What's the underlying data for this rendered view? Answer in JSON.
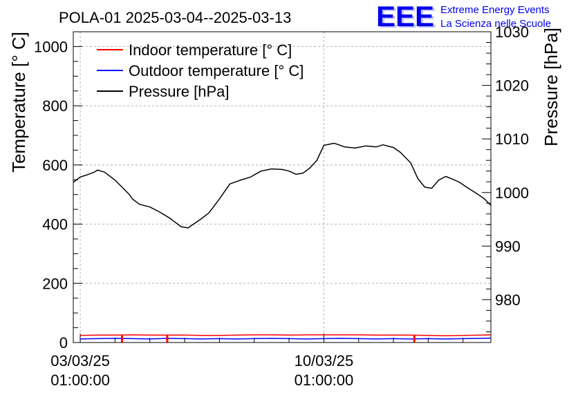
{
  "chart_data": {
    "type": "line",
    "title": "POLA-01 2025-03-04--2025-03-13",
    "ylabel_left": "Temperature [° C]",
    "ylabel_right": "Pressure [hPa]",
    "xlabel": "",
    "x_domain_days": [
      -0.2,
      11.8
    ],
    "x_ticks": [
      {
        "day": 0,
        "date": "03/03/25",
        "time": "01:00:00"
      },
      {
        "day": 7,
        "date": "10/03/25",
        "time": "01:00:00"
      }
    ],
    "ylim_left": [
      0,
      1050
    ],
    "yticks_left": [
      "0",
      "200",
      "400",
      "600",
      "800",
      "1000"
    ],
    "ylim_right": [
      972,
      1030
    ],
    "yticks_right": [
      "980",
      "990",
      "1000",
      "1010",
      "1020",
      "1030"
    ],
    "grid": true,
    "legend_position": "top-left",
    "series": [
      {
        "name": "Indoor temperature [° C]",
        "axis": "left",
        "color": "#ff0000",
        "x": [
          0.0,
          0.5,
          1.0,
          1.5,
          2.0,
          2.5,
          3.0,
          3.5,
          4.0,
          4.5,
          5.0,
          5.5,
          6.0,
          6.5,
          7.0,
          7.5,
          8.0,
          8.5,
          9.0,
          9.5,
          10.0,
          10.5,
          11.0,
          11.5,
          11.8
        ],
        "values": [
          24,
          25,
          25,
          26,
          25,
          25,
          25,
          24,
          24,
          25,
          26,
          26,
          25,
          26,
          26,
          26,
          26,
          25,
          25,
          25,
          24,
          23,
          24,
          25,
          26
        ]
      },
      {
        "name": "Outdoor temperature [° C]",
        "axis": "left",
        "color": "#0000ff",
        "x": [
          0.0,
          0.5,
          1.0,
          1.5,
          2.0,
          2.5,
          3.0,
          3.5,
          4.0,
          4.5,
          5.0,
          5.5,
          6.0,
          6.5,
          7.0,
          7.5,
          8.0,
          8.5,
          9.0,
          9.5,
          10.0,
          10.5,
          11.0,
          11.5,
          11.8
        ],
        "values": [
          12,
          13,
          14,
          13,
          12,
          14,
          13,
          12,
          13,
          12,
          13,
          14,
          13,
          12,
          13,
          14,
          13,
          12,
          13,
          12,
          13,
          12,
          13,
          14,
          15
        ]
      },
      {
        "name": "Pressure [hPa]",
        "axis": "right",
        "color": "#000000",
        "x": [
          -0.2,
          0.0,
          0.2,
          0.4,
          0.5,
          0.7,
          1.0,
          1.2,
          1.4,
          1.5,
          1.7,
          2.0,
          2.3,
          2.6,
          2.9,
          3.1,
          3.3,
          3.5,
          3.7,
          4.0,
          4.3,
          4.6,
          4.9,
          5.0,
          5.2,
          5.5,
          5.8,
          6.0,
          6.2,
          6.4,
          6.6,
          6.8,
          7.0,
          7.3,
          7.6,
          7.9,
          8.2,
          8.5,
          8.7,
          9.0,
          9.2,
          9.5,
          9.7,
          9.9,
          10.1,
          10.3,
          10.5,
          10.7,
          10.9,
          11.1,
          11.3,
          11.6,
          11.8
        ],
        "values": [
          1001.9,
          1002.9,
          1003.3,
          1003.8,
          1004.2,
          1003.8,
          1002.3,
          1001.0,
          999.7,
          998.8,
          997.8,
          997.3,
          996.3,
          995.1,
          993.6,
          993.4,
          994.3,
          995.2,
          996.2,
          998.8,
          1001.6,
          1002.3,
          1002.9,
          1003.3,
          1004.0,
          1004.4,
          1004.3,
          1004.0,
          1003.4,
          1003.6,
          1004.6,
          1006.0,
          1008.8,
          1009.2,
          1008.5,
          1008.3,
          1008.7,
          1008.5,
          1008.9,
          1008.4,
          1007.5,
          1005.5,
          1002.6,
          1001.0,
          1000.8,
          1002.3,
          1003.0,
          1002.5,
          1001.9,
          1001.0,
          1000.2,
          998.9,
          997.6
        ]
      }
    ],
    "markers": {
      "color": "#ff0000",
      "days": [
        1.2,
        2.5,
        9.6
      ]
    }
  },
  "logo": {
    "mark": "EEE",
    "line1": "Extreme Energy Events",
    "line2": "La Scienza nelle Scuole",
    "color": "#0000ee"
  }
}
